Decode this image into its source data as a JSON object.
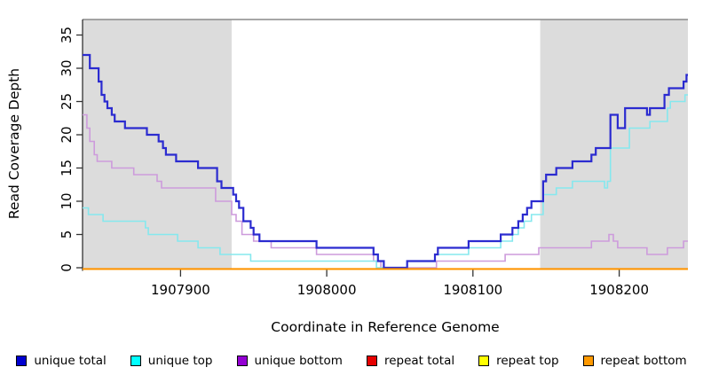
{
  "chart_data": {
    "type": "line",
    "subtype": "step",
    "title": "",
    "xlabel": "Coordinate in Reference Genome",
    "ylabel": "Read Coverage Depth",
    "xlim": [
      1907833,
      1908247
    ],
    "ylim": [
      0,
      35
    ],
    "xticks": [
      1907900,
      1908000,
      1908100,
      1908200
    ],
    "yticks": [
      0,
      5,
      10,
      15,
      20,
      25,
      30,
      35
    ],
    "grid": false,
    "legend_position": "bottom",
    "plot_background": "#ffffff",
    "shaded_region_color": "#dcdcdc",
    "shaded_regions": [
      {
        "from": 1907833,
        "to": 1907935
      },
      {
        "from": 1908146,
        "to": 1908247
      }
    ],
    "series": [
      {
        "name": "repeat total",
        "slug": "repeat-total",
        "color": "#cc0000",
        "width": 1.8,
        "dy": 1.4,
        "points": [
          [
            1907833,
            0
          ]
        ]
      },
      {
        "name": "repeat top",
        "slug": "repeat-top",
        "color": "#ffff00",
        "width": 1.8,
        "dy": 1.4,
        "points": [
          [
            1907833,
            0
          ]
        ]
      },
      {
        "name": "unique bottom",
        "slug": "unique-bottom",
        "color": "#cd9bdc",
        "width": 1.6,
        "dy": 0,
        "points": [
          [
            1907833,
            23
          ],
          [
            1907836,
            21
          ],
          [
            1907838,
            19
          ],
          [
            1907841,
            17
          ],
          [
            1907843,
            16
          ],
          [
            1907853,
            15
          ],
          [
            1907868,
            14
          ],
          [
            1907884,
            13
          ],
          [
            1907887,
            12
          ],
          [
            1907924,
            10
          ],
          [
            1907935,
            8
          ],
          [
            1907938,
            7
          ],
          [
            1907942,
            5
          ],
          [
            1907950,
            4
          ],
          [
            1907962,
            3
          ],
          [
            1907993,
            2
          ],
          [
            1908032,
            1
          ],
          [
            1908037,
            0
          ],
          [
            1908075,
            1
          ],
          [
            1908122,
            2
          ],
          [
            1908145,
            3
          ],
          [
            1908181,
            4
          ],
          [
            1908193,
            5
          ],
          [
            1908196,
            4
          ],
          [
            1908199,
            3
          ],
          [
            1908219,
            2
          ],
          [
            1908233,
            3
          ],
          [
            1908244,
            4
          ]
        ]
      },
      {
        "name": "unique top",
        "slug": "unique-top",
        "color": "#85e8ee",
        "width": 1.6,
        "dy": 0,
        "points": [
          [
            1907833,
            9
          ],
          [
            1907837,
            8
          ],
          [
            1907847,
            7
          ],
          [
            1907876,
            6
          ],
          [
            1907878,
            5
          ],
          [
            1907898,
            4
          ],
          [
            1907912,
            3
          ],
          [
            1907927,
            2
          ],
          [
            1907948,
            1
          ],
          [
            1908034,
            0
          ],
          [
            1908055,
            1
          ],
          [
            1908074,
            2
          ],
          [
            1908097,
            3
          ],
          [
            1908119,
            4
          ],
          [
            1908127,
            5
          ],
          [
            1908131,
            6
          ],
          [
            1908135,
            7
          ],
          [
            1908140,
            8
          ],
          [
            1908148,
            11
          ],
          [
            1908157,
            12
          ],
          [
            1908168,
            13
          ],
          [
            1908190,
            12
          ],
          [
            1908192,
            13
          ],
          [
            1908194,
            18
          ],
          [
            1908207,
            21
          ],
          [
            1908221,
            22
          ],
          [
            1908233,
            24
          ],
          [
            1908235,
            25
          ],
          [
            1908245,
            26
          ]
        ]
      },
      {
        "name": "unique total",
        "slug": "unique-total",
        "color": "#2b2bd0",
        "width": 2.2,
        "dy": 0,
        "points": [
          [
            1907833,
            32
          ],
          [
            1907838,
            30
          ],
          [
            1907844,
            28
          ],
          [
            1907846,
            26
          ],
          [
            1907848,
            25
          ],
          [
            1907850,
            24
          ],
          [
            1907853,
            23
          ],
          [
            1907855,
            22
          ],
          [
            1907862,
            21
          ],
          [
            1907877,
            20
          ],
          [
            1907885,
            19
          ],
          [
            1907888,
            18
          ],
          [
            1907890,
            17
          ],
          [
            1907897,
            16
          ],
          [
            1907912,
            15
          ],
          [
            1907925,
            13
          ],
          [
            1907928,
            12
          ],
          [
            1907936,
            11
          ],
          [
            1907938,
            10
          ],
          [
            1907940,
            9
          ],
          [
            1907943,
            7
          ],
          [
            1907948,
            6
          ],
          [
            1907950,
            5
          ],
          [
            1907954,
            4
          ],
          [
            1907993,
            3
          ],
          [
            1908032,
            2
          ],
          [
            1908035,
            1
          ],
          [
            1908039,
            0
          ],
          [
            1908055,
            1
          ],
          [
            1908074,
            2
          ],
          [
            1908076,
            3
          ],
          [
            1908097,
            4
          ],
          [
            1908119,
            5
          ],
          [
            1908127,
            6
          ],
          [
            1908131,
            7
          ],
          [
            1908134,
            8
          ],
          [
            1908137,
            9
          ],
          [
            1908140,
            10
          ],
          [
            1908148,
            13
          ],
          [
            1908150,
            14
          ],
          [
            1908157,
            15
          ],
          [
            1908168,
            16
          ],
          [
            1908181,
            17
          ],
          [
            1908184,
            18
          ],
          [
            1908194,
            23
          ],
          [
            1908199,
            21
          ],
          [
            1908204,
            24
          ],
          [
            1908219,
            23
          ],
          [
            1908221,
            24
          ],
          [
            1908231,
            26
          ],
          [
            1908234,
            27
          ],
          [
            1908244,
            28
          ],
          [
            1908246,
            29
          ]
        ]
      },
      {
        "name": "repeat bottom",
        "slug": "repeat-bottom",
        "color": "#ff9300",
        "width": 2.0,
        "dy": 1.4,
        "points": [
          [
            1907833,
            0
          ]
        ]
      }
    ],
    "legend": [
      {
        "label": "unique total",
        "slug": "unique-total",
        "color": "#0000d0"
      },
      {
        "label": "unique top",
        "slug": "unique-top",
        "color": "#00ffff"
      },
      {
        "label": "unique bottom",
        "slug": "unique-bottom",
        "color": "#9400d3"
      },
      {
        "label": "repeat total",
        "slug": "repeat-total",
        "color": "#e60000"
      },
      {
        "label": "repeat top",
        "slug": "repeat-top",
        "color": "#ffff00"
      },
      {
        "label": "repeat bottom",
        "slug": "repeat-bottom",
        "color": "#ff9900"
      }
    ]
  }
}
